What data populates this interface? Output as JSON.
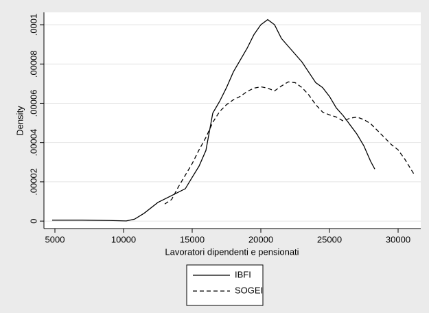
{
  "chart_data": {
    "type": "line",
    "x_label": "Lavoratori dipendenti e pensionati",
    "y_label": "Density",
    "xlim": [
      4200,
      31650
    ],
    "ylim": [
      -3.8e-06,
      0.0001063
    ],
    "xticks": [
      5000,
      10000,
      15000,
      20000,
      25000,
      30000
    ],
    "yticks": [
      0,
      {
        "value": 2e-05,
        "label": ".00002"
      },
      {
        "value": 4e-05,
        "label": ".00004"
      },
      {
        "value": 6e-05,
        "label": ".00006"
      },
      {
        "value": 8e-05,
        "label": ".00008"
      },
      {
        "value": 0.0001,
        "label": ".0001"
      }
    ],
    "grid": true,
    "legend": "bottom",
    "series": [
      {
        "name": "IBFI",
        "color": "#000000",
        "dash": "solid",
        "x": [
          4800,
          7000,
          9000,
          10200,
          10800,
          11500,
          12500,
          13500,
          14500,
          15000,
          15500,
          16000,
          16500,
          17000,
          17500,
          18000,
          19000,
          19500,
          20000,
          20500,
          21000,
          21500,
          22000,
          23000,
          24000,
          24500,
          25000,
          25500,
          26000,
          27000,
          27500,
          28000,
          28300
        ],
        "values": [
          5e-07,
          5e-07,
          3e-07,
          1e-07,
          1e-06,
          4e-06,
          9.5e-06,
          1.3e-05,
          1.65e-05,
          2.23e-05,
          2.8e-05,
          3.6e-05,
          5.5e-05,
          6.1e-05,
          6.8e-05,
          7.6e-05,
          8.8e-05,
          9.5e-05,
          0.0001,
          0.0001026,
          0.0001,
          9.3e-05,
          8.9e-05,
          8.1e-05,
          7.05e-05,
          6.8e-05,
          6.35e-05,
          5.76e-05,
          5.37e-05,
          4.43e-05,
          3.84e-05,
          3.04e-05,
          2.65e-05
        ]
      },
      {
        "name": "SOGEI",
        "color": "#000000",
        "dash": "dashed",
        "x": [
          13000,
          13500,
          14000,
          14500,
          15000,
          15500,
          16000,
          16500,
          17000,
          17500,
          18000,
          18500,
          19000,
          19500,
          20000,
          20500,
          21000,
          21500,
          22000,
          22500,
          23000,
          23500,
          24000,
          24500,
          25000,
          25500,
          26000,
          26500,
          27000,
          27500,
          28000,
          28500,
          29000,
          29500,
          30000,
          30500,
          31200
        ],
        "values": [
          8.7e-06,
          1.1e-05,
          1.75e-05,
          2.34e-05,
          2.93e-05,
          3.63e-05,
          4.26e-05,
          5.03e-05,
          5.58e-05,
          5.93e-05,
          6.18e-05,
          6.35e-05,
          6.6e-05,
          6.77e-05,
          6.84e-05,
          6.77e-05,
          6.63e-05,
          6.88e-05,
          7.09e-05,
          7.05e-05,
          6.8e-05,
          6.42e-05,
          5.93e-05,
          5.55e-05,
          5.41e-05,
          5.3e-05,
          5.1e-05,
          5.24e-05,
          5.3e-05,
          5.17e-05,
          4.96e-05,
          4.61e-05,
          4.26e-05,
          3.9e-05,
          3.63e-05,
          3.14e-05,
          2.34e-05
        ]
      }
    ]
  }
}
